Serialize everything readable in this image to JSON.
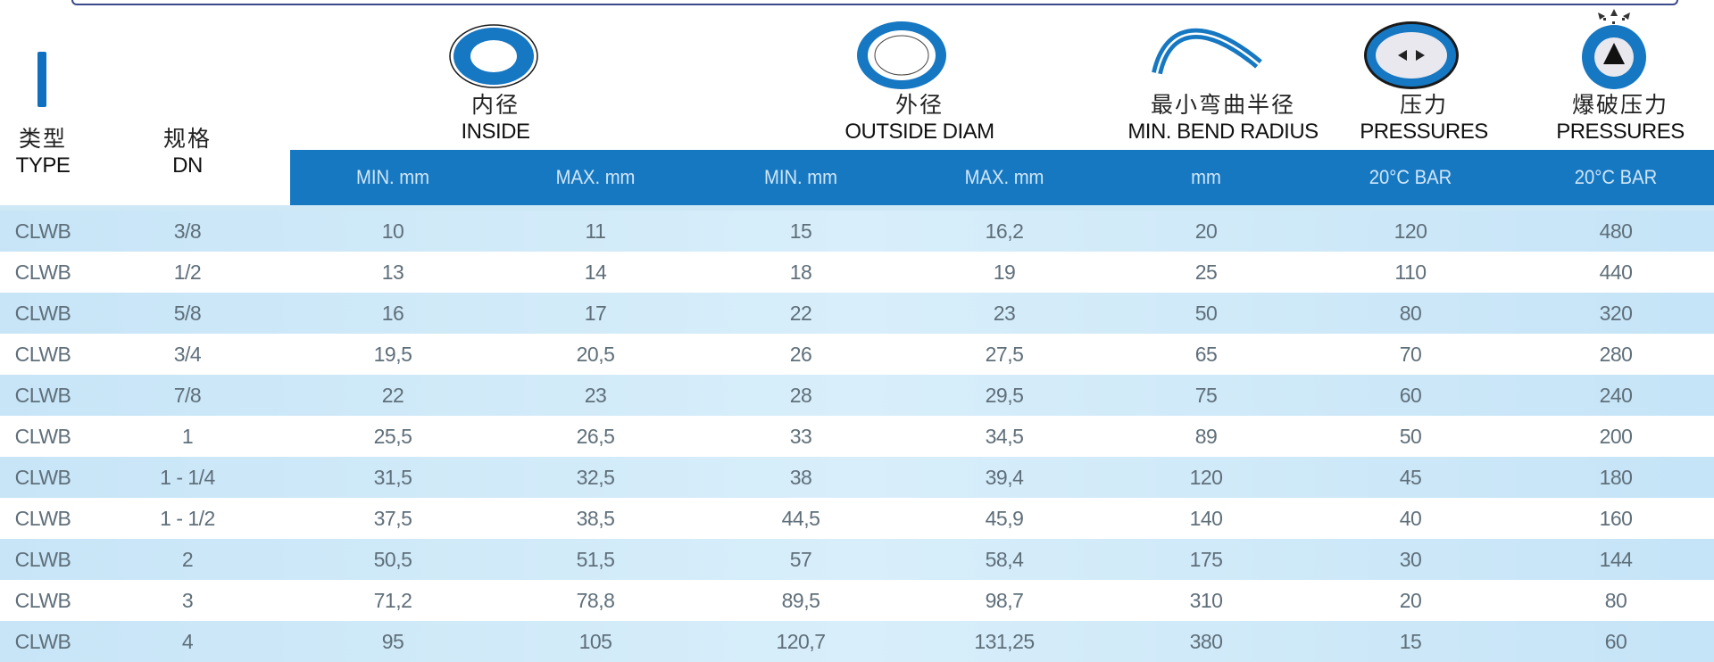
{
  "header": {
    "type": {
      "cn": "类型",
      "en": "TYPE"
    },
    "dn": {
      "cn": "规格",
      "en": "DN"
    },
    "inside": {
      "cn": "内径",
      "en": "INSIDE"
    },
    "outside": {
      "cn": "外径",
      "en": "OUTSIDE DIAM"
    },
    "bend": {
      "cn": "最小弯曲半径",
      "en": "MIN. BEND RADIUS"
    },
    "pressure": {
      "cn": "压力",
      "en": "PRESSURES"
    },
    "burst": {
      "cn": "爆破压力",
      "en": "PRESSURES"
    }
  },
  "subheaders": [
    "MIN. mm",
    "MAX. mm",
    "MIN. mm",
    "MAX. mm",
    "mm",
    "20°C BAR",
    "20°C BAR"
  ],
  "rows": [
    [
      "CLWB",
      "3/8",
      "10",
      "11",
      "15",
      "16,2",
      "20",
      "120",
      "480"
    ],
    [
      "CLWB",
      "1/2",
      "13",
      "14",
      "18",
      "19",
      "25",
      "110",
      "440"
    ],
    [
      "CLWB",
      "5/8",
      "16",
      "17",
      "22",
      "23",
      "50",
      "80",
      "320"
    ],
    [
      "CLWB",
      "3/4",
      "19,5",
      "20,5",
      "26",
      "27,5",
      "65",
      "70",
      "280"
    ],
    [
      "CLWB",
      "7/8",
      "22",
      "23",
      "28",
      "29,5",
      "75",
      "60",
      "240"
    ],
    [
      "CLWB",
      "1",
      "25,5",
      "26,5",
      "33",
      "34,5",
      "89",
      "50",
      "200"
    ],
    [
      "CLWB",
      "1 - 1/4",
      "31,5",
      "32,5",
      "38",
      "39,4",
      "120",
      "45",
      "180"
    ],
    [
      "CLWB",
      "1 - 1/2",
      "37,5",
      "38,5",
      "44,5",
      "45,9",
      "140",
      "40",
      "160"
    ],
    [
      "CLWB",
      "2",
      "50,5",
      "51,5",
      "57",
      "58,4",
      "175",
      "30",
      "144"
    ],
    [
      "CLWB",
      "3",
      "71,2",
      "78,8",
      "89,5",
      "98,7",
      "310",
      "20",
      "80"
    ],
    [
      "CLWB",
      "4",
      "95",
      "105",
      "120,7",
      "131,25",
      "380",
      "15",
      "60"
    ]
  ],
  "icons": {
    "type": "type-bar-icon",
    "inside": "inside-diameter-ring-icon",
    "outside": "outside-diameter-ring-icon",
    "bend": "bend-radius-arc-icon",
    "pressure": "pressure-arrows-icon",
    "burst": "burst-pressure-icon"
  },
  "colors": {
    "header_blue": "#1778c2",
    "row_tint": "#c7e5f7",
    "text": "#5f6f7a"
  }
}
